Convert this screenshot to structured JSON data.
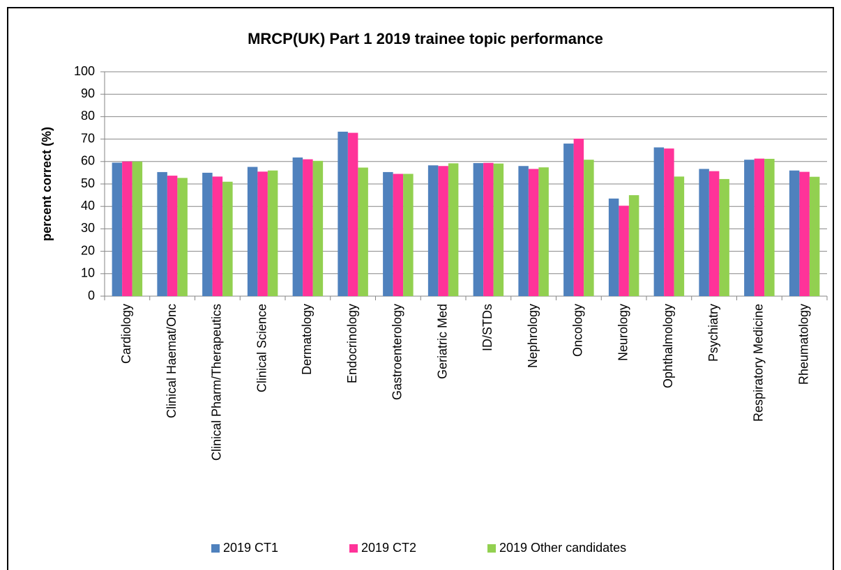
{
  "chart_data": {
    "type": "bar",
    "title": "MRCP(UK) Part 1 2019 trainee topic performance",
    "y_label": "percent correct (%)",
    "categories": [
      "Cardiology",
      "Clinical Haemat/Onc",
      "Clinical Pharm/Therapeutics",
      "Clinical Science",
      "Dermatology",
      "Endocrinology",
      "Gastroenterology",
      "Geriatric Med",
      "ID/STDs",
      "Nephrology",
      "Oncology",
      "Neurology",
      "Ophthalmology",
      "Psychiatry",
      "Respiratory Medicine",
      "Rheumatology"
    ],
    "series": [
      {
        "name": "2019 CT1",
        "color": "#4f81bd",
        "values": [
          59.5,
          55.3,
          55,
          57.6,
          61.8,
          73.3,
          55.3,
          58.3,
          59.3,
          58,
          68,
          43.5,
          66.3,
          56.7,
          60.8,
          56
        ]
      },
      {
        "name": "2019 CT2",
        "color": "#ff3399",
        "values": [
          60,
          53.7,
          53.3,
          55.5,
          61,
          72.8,
          54.5,
          58,
          59.4,
          56.7,
          70.2,
          40.3,
          65.8,
          55.7,
          61.3,
          55.4
        ]
      },
      {
        "name": "2019 Other candidates",
        "color": "#92d050",
        "values": [
          60,
          52.7,
          51,
          56,
          60.3,
          57.3,
          54.5,
          59.2,
          59.1,
          57.4,
          60.8,
          45,
          53.3,
          52.2,
          61.2,
          53.2
        ]
      }
    ],
    "ylim": [
      0,
      100
    ],
    "yticks": [
      0,
      10,
      20,
      30,
      40,
      50,
      60,
      70,
      80,
      90,
      100
    ],
    "grid": true,
    "legend": "bottom"
  }
}
